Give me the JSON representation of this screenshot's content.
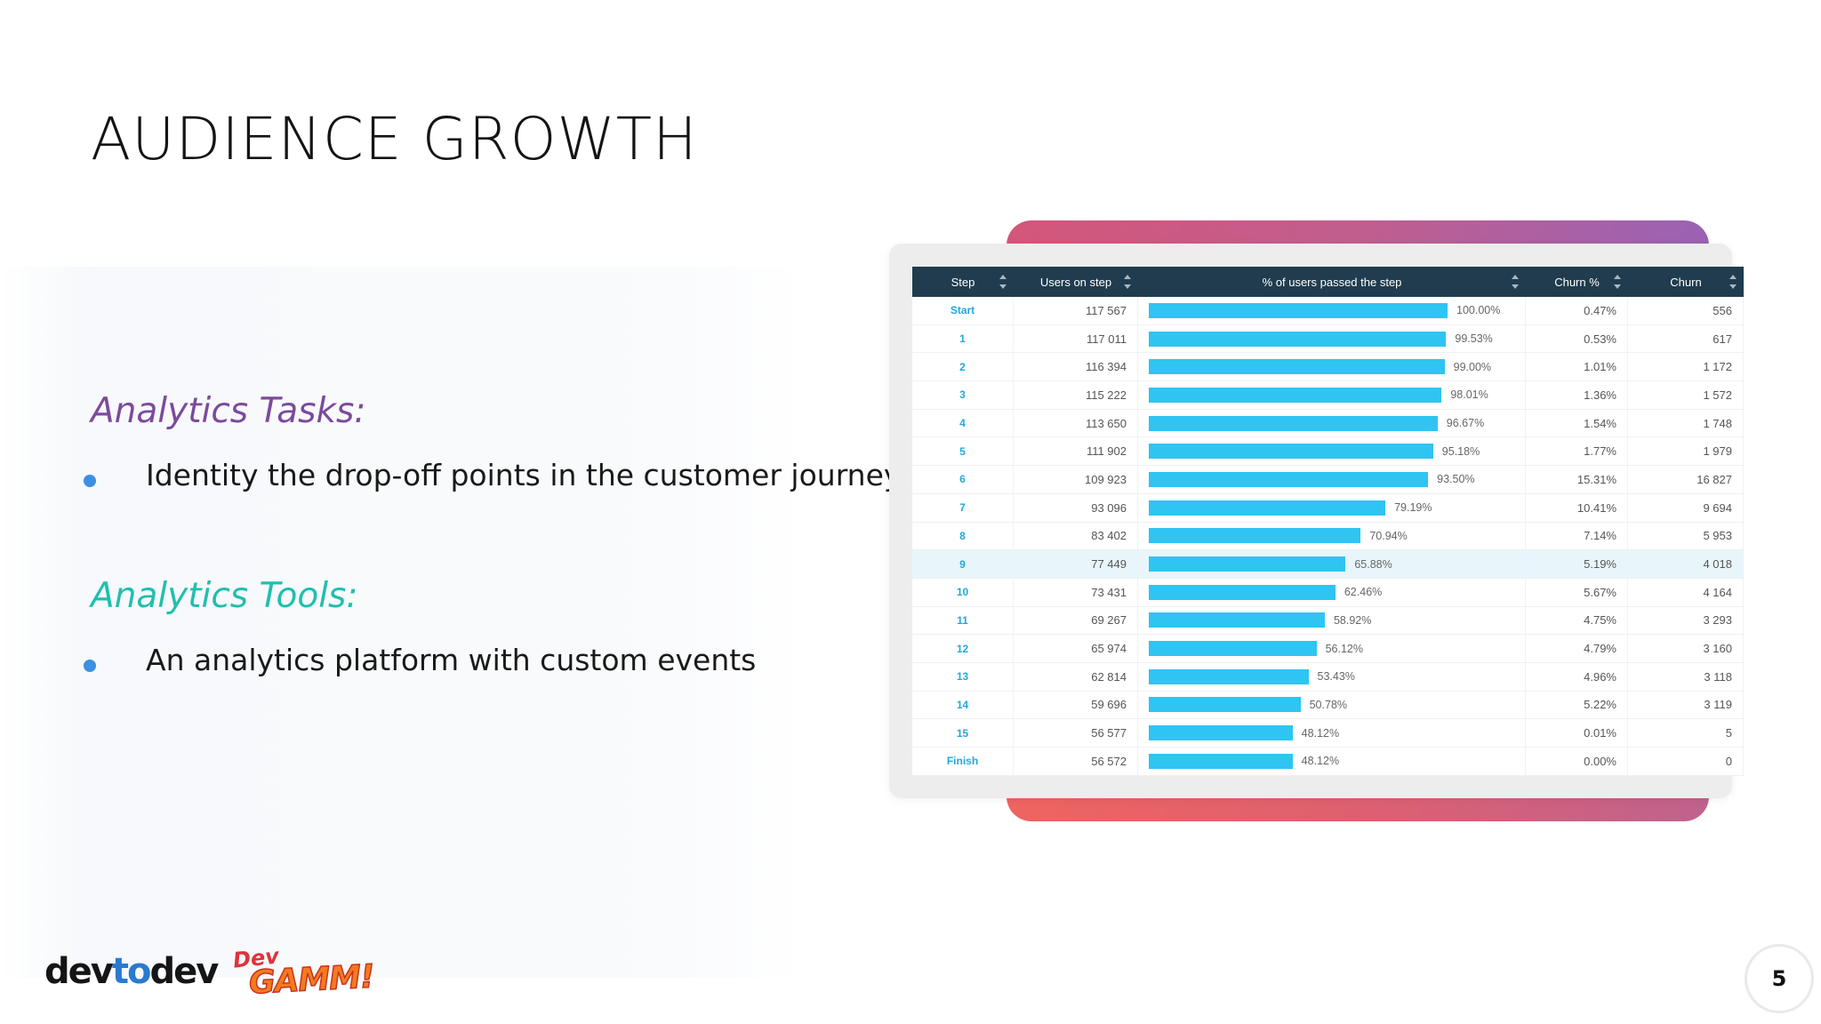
{
  "slide": {
    "title": "AUDIENCE GROWTH",
    "page_number": "5"
  },
  "tasks": {
    "heading": "Analytics Tasks:",
    "items": [
      "Identity the drop-off points in the customer journey"
    ]
  },
  "tools": {
    "heading": "Analytics Tools:",
    "items": [
      "An analytics platform with custom events"
    ]
  },
  "table": {
    "headers": {
      "step": "Step",
      "users": "Users on step",
      "pct": "% of users passed the step",
      "churn_pct": "Churn %",
      "churn": "Churn"
    },
    "highlighted_row": 9,
    "rows": [
      {
        "step": "Start",
        "users": "117 567",
        "pct": "100.00%",
        "pct_value": 100.0,
        "churn_pct": "0.47%",
        "churn": "556"
      },
      {
        "step": "1",
        "users": "117 011",
        "pct": "99.53%",
        "pct_value": 99.53,
        "churn_pct": "0.53%",
        "churn": "617"
      },
      {
        "step": "2",
        "users": "116 394",
        "pct": "99.00%",
        "pct_value": 99.0,
        "churn_pct": "1.01%",
        "churn": "1 172"
      },
      {
        "step": "3",
        "users": "115 222",
        "pct": "98.01%",
        "pct_value": 98.01,
        "churn_pct": "1.36%",
        "churn": "1 572"
      },
      {
        "step": "4",
        "users": "113 650",
        "pct": "96.67%",
        "pct_value": 96.67,
        "churn_pct": "1.54%",
        "churn": "1 748"
      },
      {
        "step": "5",
        "users": "111 902",
        "pct": "95.18%",
        "pct_value": 95.18,
        "churn_pct": "1.77%",
        "churn": "1 979"
      },
      {
        "step": "6",
        "users": "109 923",
        "pct": "93.50%",
        "pct_value": 93.5,
        "churn_pct": "15.31%",
        "churn": "16 827"
      },
      {
        "step": "7",
        "users": "93 096",
        "pct": "79.19%",
        "pct_value": 79.19,
        "churn_pct": "10.41%",
        "churn": "9 694"
      },
      {
        "step": "8",
        "users": "83 402",
        "pct": "70.94%",
        "pct_value": 70.94,
        "churn_pct": "7.14%",
        "churn": "5 953"
      },
      {
        "step": "9",
        "users": "77 449",
        "pct": "65.88%",
        "pct_value": 65.88,
        "churn_pct": "5.19%",
        "churn": "4 018"
      },
      {
        "step": "10",
        "users": "73 431",
        "pct": "62.46%",
        "pct_value": 62.46,
        "churn_pct": "5.67%",
        "churn": "4 164"
      },
      {
        "step": "11",
        "users": "69 267",
        "pct": "58.92%",
        "pct_value": 58.92,
        "churn_pct": "4.75%",
        "churn": "3 293"
      },
      {
        "step": "12",
        "users": "65 974",
        "pct": "56.12%",
        "pct_value": 56.12,
        "churn_pct": "4.79%",
        "churn": "3 160"
      },
      {
        "step": "13",
        "users": "62 814",
        "pct": "53.43%",
        "pct_value": 53.43,
        "churn_pct": "4.96%",
        "churn": "3 118"
      },
      {
        "step": "14",
        "users": "59 696",
        "pct": "50.78%",
        "pct_value": 50.78,
        "churn_pct": "5.22%",
        "churn": "3 119"
      },
      {
        "step": "15",
        "users": "56 577",
        "pct": "48.12%",
        "pct_value": 48.12,
        "churn_pct": "0.01%",
        "churn": "5"
      },
      {
        "step": "Finish",
        "users": "56 572",
        "pct": "48.12%",
        "pct_value": 48.12,
        "churn_pct": "0.00%",
        "churn": "0"
      }
    ]
  },
  "footer": {
    "logo_devtodev_parts": [
      "dev",
      "to",
      "dev"
    ],
    "logo_dev": "Dev",
    "logo_gamm": "GAMM!"
  },
  "colors": {
    "tasks_heading": "#7b4a9c",
    "tools_heading": "#1fbfae",
    "bullet": "#3d8fe0",
    "table_header": "#203c4e",
    "bar": "#2fc4f2",
    "step_link": "#22a8dc"
  }
}
